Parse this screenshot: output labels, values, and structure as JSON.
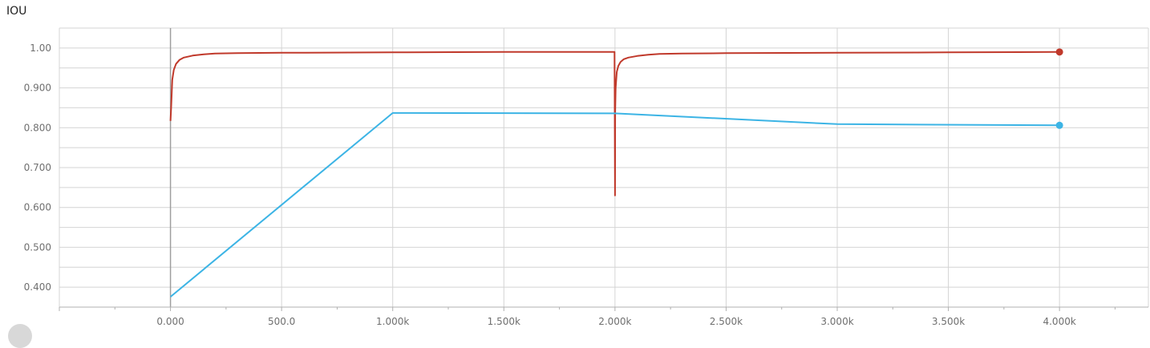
{
  "chart_data": {
    "type": "line",
    "title": "IOU",
    "xlabel": "",
    "ylabel": "",
    "xlim": [
      -500,
      4400
    ],
    "ylim": [
      0.35,
      1.05
    ],
    "grid": true,
    "x_tick_labels": [
      "0.000",
      "500.0",
      "1.000k",
      "1.500k",
      "2.000k",
      "2.500k",
      "3.000k",
      "3.500k",
      "4.000k"
    ],
    "x_tick_values": [
      0,
      500,
      1000,
      1500,
      2000,
      2500,
      3000,
      3500,
      4000
    ],
    "y_tick_labels": [
      "1.00",
      "0.900",
      "0.800",
      "0.700",
      "0.600",
      "0.500",
      "0.400"
    ],
    "y_tick_values": [
      1.0,
      0.9,
      0.8,
      0.7,
      0.6,
      0.5,
      0.4
    ],
    "series": [
      {
        "color": "#c0392b",
        "x": [
          0,
          3,
          8,
          15,
          25,
          40,
          60,
          100,
          150,
          200,
          300,
          500,
          1000,
          1500,
          1998,
          2000,
          2001,
          2003,
          2008,
          2015,
          2025,
          2040,
          2060,
          2100,
          2150,
          2200,
          2300,
          2500,
          3000,
          3500,
          4000
        ],
        "y": [
          0.817,
          0.85,
          0.92,
          0.945,
          0.96,
          0.97,
          0.976,
          0.981,
          0.984,
          0.986,
          0.987,
          0.988,
          0.989,
          0.99,
          0.99,
          0.63,
          0.84,
          0.9,
          0.94,
          0.955,
          0.965,
          0.972,
          0.976,
          0.98,
          0.983,
          0.985,
          0.986,
          0.987,
          0.988,
          0.989,
          0.99
        ]
      },
      {
        "color": "#3cb4e5",
        "x": [
          0,
          1000,
          2000,
          3000,
          4000
        ],
        "y": [
          0.376,
          0.837,
          0.836,
          0.809,
          0.806
        ]
      }
    ]
  }
}
